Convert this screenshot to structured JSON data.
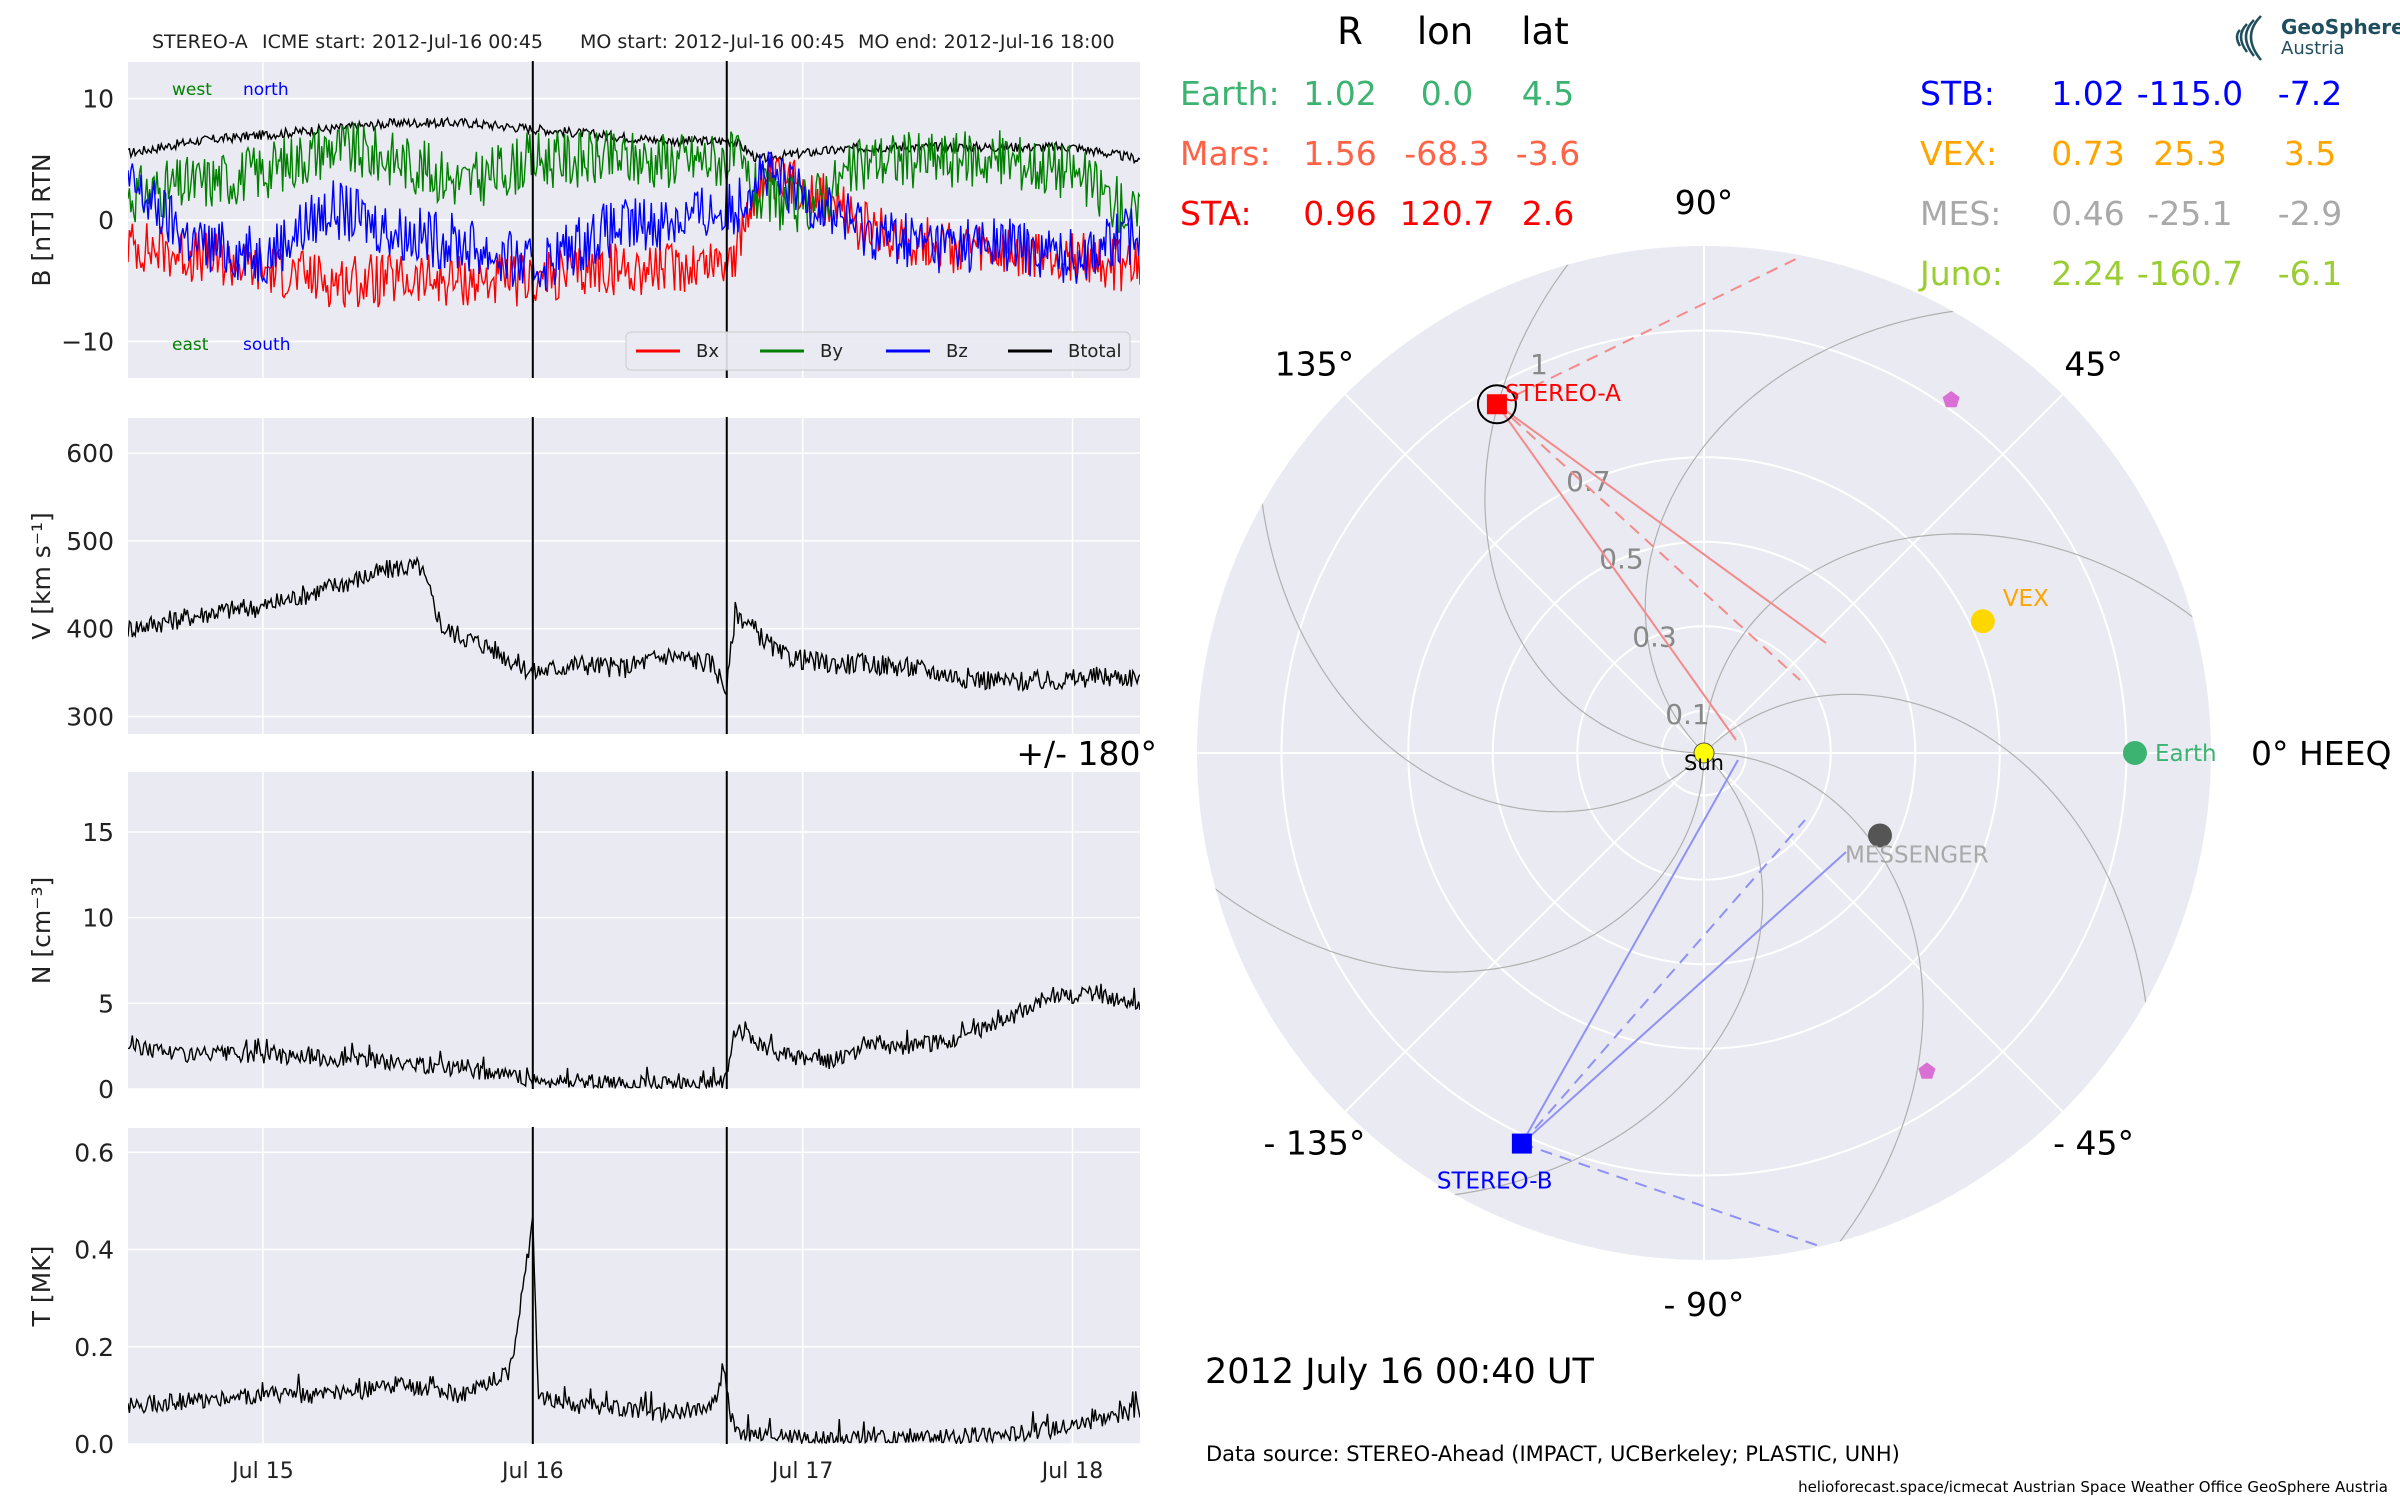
{
  "header": {
    "spacecraft": "STEREO-A",
    "icme_start": "ICME start: 2012-Jul-16 00:45",
    "mo_start": "MO start: 2012-Jul-16 00:45",
    "mo_end": "MO end: 2012-Jul-16 18:00"
  },
  "logo": {
    "line1": "GeoSphere",
    "line2": "Austria"
  },
  "timestamp": "2012 July 16  00:40 UT",
  "data_source": "Data source: STEREO-Ahead (IMPACT, UCBerkeley; PLASTIC, UNH)",
  "footer": "helioforecast.space/icmecat   Austrian Space Weather Office   GeoSphere Austria",
  "position_table": {
    "headers": [
      "R",
      "lon",
      "lat"
    ],
    "left": [
      {
        "name": "Earth:",
        "R": "1.02",
        "lon": "0.0",
        "lat": "4.5",
        "color": "#3cb371"
      },
      {
        "name": "Mars:",
        "R": "1.56",
        "lon": "-68.3",
        "lat": "-3.6",
        "color": "#ff6347"
      },
      {
        "name": "STA:",
        "R": "0.96",
        "lon": "120.7",
        "lat": "2.6",
        "color": "#ff0000"
      }
    ],
    "right": [
      {
        "name": "STB:",
        "R": "1.02",
        "lon": "-115.0",
        "lat": "-7.2",
        "color": "#0000ff"
      },
      {
        "name": "VEX:",
        "R": "0.73",
        "lon": "25.3",
        "lat": "3.5",
        "color": "#ffa500"
      },
      {
        "name": "MES:",
        "R": "0.46",
        "lon": "-25.1",
        "lat": "-2.9",
        "color": "#a9a9a9"
      },
      {
        "name": "Juno:",
        "R": "2.24",
        "lon": "-160.7",
        "lat": "-6.1",
        "color": "#9acd32"
      }
    ]
  },
  "chart_data": [
    {
      "type": "line",
      "ylabel": "B [nT] RTN",
      "ylim": [
        -13,
        13
      ],
      "yticks": [
        "10",
        "0",
        "−10"
      ],
      "yticks_values": [
        10,
        0,
        -10
      ],
      "x_range": [
        "2012-07-14 12:00",
        "2012-07-18 06:00"
      ],
      "x_ticks": [
        {
          "label": "Jul 15",
          "t": 12
        },
        {
          "label": "Jul 16",
          "t": 36
        },
        {
          "label": "Jul 17",
          "t": 60
        },
        {
          "label": "Jul 18",
          "t": 84
        }
      ],
      "annotations": {
        "west": "west",
        "north": "north",
        "east": "east",
        "south": "south"
      },
      "legend": {
        "placement": "lower-right",
        "entries": [
          {
            "name": "Bx",
            "color": "#ff0000"
          },
          {
            "name": "By",
            "color": "#008000"
          },
          {
            "name": "Bz",
            "color": "#0000ff"
          },
          {
            "name": "Btotal",
            "color": "#000000"
          }
        ]
      },
      "series": [
        {
          "name": "Btotal",
          "color": "#000000",
          "t": [
            0,
            6,
            12,
            18,
            24,
            30,
            36,
            42,
            48,
            54,
            56,
            60,
            66,
            72,
            78,
            84,
            90
          ],
          "values": [
            5.5,
            6.5,
            7,
            7.5,
            8,
            8,
            7.5,
            7,
            6.5,
            6.5,
            5,
            5.5,
            6,
            6,
            6,
            6,
            5
          ]
        },
        {
          "name": "Bx",
          "color": "#ff0000",
          "t": [
            0,
            6,
            12,
            18,
            24,
            30,
            36,
            42,
            48,
            54,
            56,
            60,
            66,
            72,
            78,
            84,
            90
          ],
          "values": [
            -2,
            -3,
            -4,
            -5,
            -5,
            -5,
            -5,
            -4,
            -4,
            -3,
            3,
            3,
            -1,
            -2,
            -3,
            -3,
            -4
          ]
        },
        {
          "name": "By",
          "color": "#008000",
          "t": [
            0,
            6,
            12,
            18,
            24,
            30,
            36,
            42,
            48,
            54,
            56,
            60,
            66,
            72,
            78,
            84,
            90
          ],
          "values": [
            2,
            3,
            4,
            6,
            5,
            3,
            5,
            5,
            5,
            5,
            2,
            1,
            5,
            5,
            5,
            4,
            0
          ]
        },
        {
          "name": "Bz",
          "color": "#0000ff",
          "t": [
            0,
            6,
            12,
            18,
            24,
            30,
            36,
            42,
            48,
            54,
            56,
            60,
            66,
            72,
            78,
            84,
            90
          ],
          "values": [
            3,
            -2,
            -3,
            1,
            -1,
            -2,
            -4,
            -1,
            0,
            1,
            4,
            2,
            -1,
            -2,
            -2,
            -3,
            -1
          ]
        }
      ],
      "vlines_t": [
        36,
        53.25
      ]
    },
    {
      "type": "line",
      "ylabel": "V [km s⁻¹]",
      "ylim": [
        280,
        640
      ],
      "yticks": [
        "600",
        "500",
        "400",
        "300"
      ],
      "yticks_values": [
        600,
        500,
        400,
        300
      ],
      "series": [
        {
          "name": "V",
          "color": "#000000",
          "t": [
            0,
            4,
            8,
            12,
            16,
            20,
            24,
            26,
            28,
            32,
            36,
            40,
            44,
            48,
            52,
            53.25,
            54,
            58,
            62,
            66,
            70,
            74,
            78,
            82,
            86,
            90
          ],
          "values": [
            400,
            410,
            420,
            425,
            440,
            455,
            470,
            470,
            400,
            380,
            350,
            360,
            355,
            370,
            360,
            330,
            420,
            370,
            360,
            360,
            355,
            345,
            340,
            340,
            345,
            345
          ]
        }
      ],
      "vlines_t": [
        36,
        53.25
      ]
    },
    {
      "type": "line",
      "ylabel": "N [cm⁻³]",
      "ylim": [
        0,
        18.5
      ],
      "yticks": [
        "15",
        "10",
        "5",
        "0"
      ],
      "yticks_values": [
        15,
        10,
        5,
        0
      ],
      "series": [
        {
          "name": "N",
          "color": "#000000",
          "t": [
            0,
            6,
            12,
            18,
            24,
            30,
            36,
            40,
            44,
            48,
            52,
            53.25,
            54,
            58,
            62,
            66,
            70,
            74,
            78,
            82,
            86,
            90
          ],
          "values": [
            2.5,
            2,
            2,
            1.8,
            1.5,
            1.2,
            0.5,
            0.3,
            0.3,
            0.3,
            0.3,
            0.5,
            3.5,
            2,
            1.5,
            2.5,
            2.5,
            3,
            4,
            5.5,
            5.5,
            5
          ]
        }
      ],
      "vlines_t": [
        36,
        53.25
      ]
    },
    {
      "type": "line",
      "ylabel": "T [MK]",
      "ylim": [
        0,
        0.65
      ],
      "yticks": [
        "0.6",
        "0.4",
        "0.2",
        "0.0"
      ],
      "yticks_values": [
        0.6,
        0.4,
        0.2,
        0.0
      ],
      "series": [
        {
          "name": "T",
          "color": "#000000",
          "t": [
            0,
            6,
            12,
            18,
            24,
            30,
            34,
            36,
            36.5,
            40,
            44,
            48,
            52,
            53,
            53.25,
            54,
            58,
            62,
            66,
            70,
            74,
            78,
            82,
            86,
            90
          ],
          "values": [
            0.08,
            0.09,
            0.1,
            0.1,
            0.12,
            0.1,
            0.15,
            0.46,
            0.1,
            0.08,
            0.07,
            0.06,
            0.08,
            0.15,
            0.1,
            0.02,
            0.015,
            0.01,
            0.01,
            0.01,
            0.015,
            0.02,
            0.03,
            0.05,
            0.07
          ]
        }
      ],
      "vlines_t": [
        36,
        53.25
      ]
    },
    {
      "type": "scatter",
      "subtype": "polar",
      "x_range": [
        -180,
        180
      ],
      "r_range": [
        0,
        1.2
      ],
      "r_ticks": [
        "0.1",
        "0.3",
        "0.5",
        "0.7",
        "1"
      ],
      "r_tick_values": [
        0.1,
        0.3,
        0.5,
        0.7,
        1.0
      ],
      "angle_labels": [
        {
          "text": "0° HEEQ",
          "angle": 0
        },
        {
          "text": "45°",
          "angle": 45
        },
        {
          "text": "90°",
          "angle": 90
        },
        {
          "text": "135°",
          "angle": 135
        },
        {
          "text": "+/- 180°",
          "angle": 180
        },
        {
          "text": "- 135°",
          "angle": -135
        },
        {
          "text": "- 90°",
          "angle": -90
        },
        {
          "text": "- 45°",
          "angle": -45
        }
      ],
      "bodies": [
        {
          "label": "Sun",
          "lon": 0,
          "r": 0,
          "color": "#ffff00",
          "marker": "circle"
        },
        {
          "label": "Earth",
          "lon": 0,
          "r": 1.02,
          "color": "#3cb371",
          "marker": "circle"
        },
        {
          "label": "VEX",
          "lon": 25.3,
          "r": 0.73,
          "color": "#ffd700",
          "marker": "circle"
        },
        {
          "label": "MESSENGER",
          "lon": -25.1,
          "r": 0.46,
          "color": "#555555",
          "marker": "circle"
        },
        {
          "label": "STEREO-A",
          "lon": 120.7,
          "r": 0.96,
          "color": "#ff0000",
          "marker": "square"
        },
        {
          "label": "STEREO-B",
          "lon": -115.0,
          "r": 1.02,
          "color": "#0000ff",
          "marker": "square"
        },
        {
          "label": "",
          "lon": 55,
          "r": 1.02,
          "color": "#da70d6",
          "marker": "pentagon"
        },
        {
          "label": "",
          "lon": -55,
          "r": 0.92,
          "color": "#da70d6",
          "marker": "pentagon"
        }
      ]
    }
  ]
}
